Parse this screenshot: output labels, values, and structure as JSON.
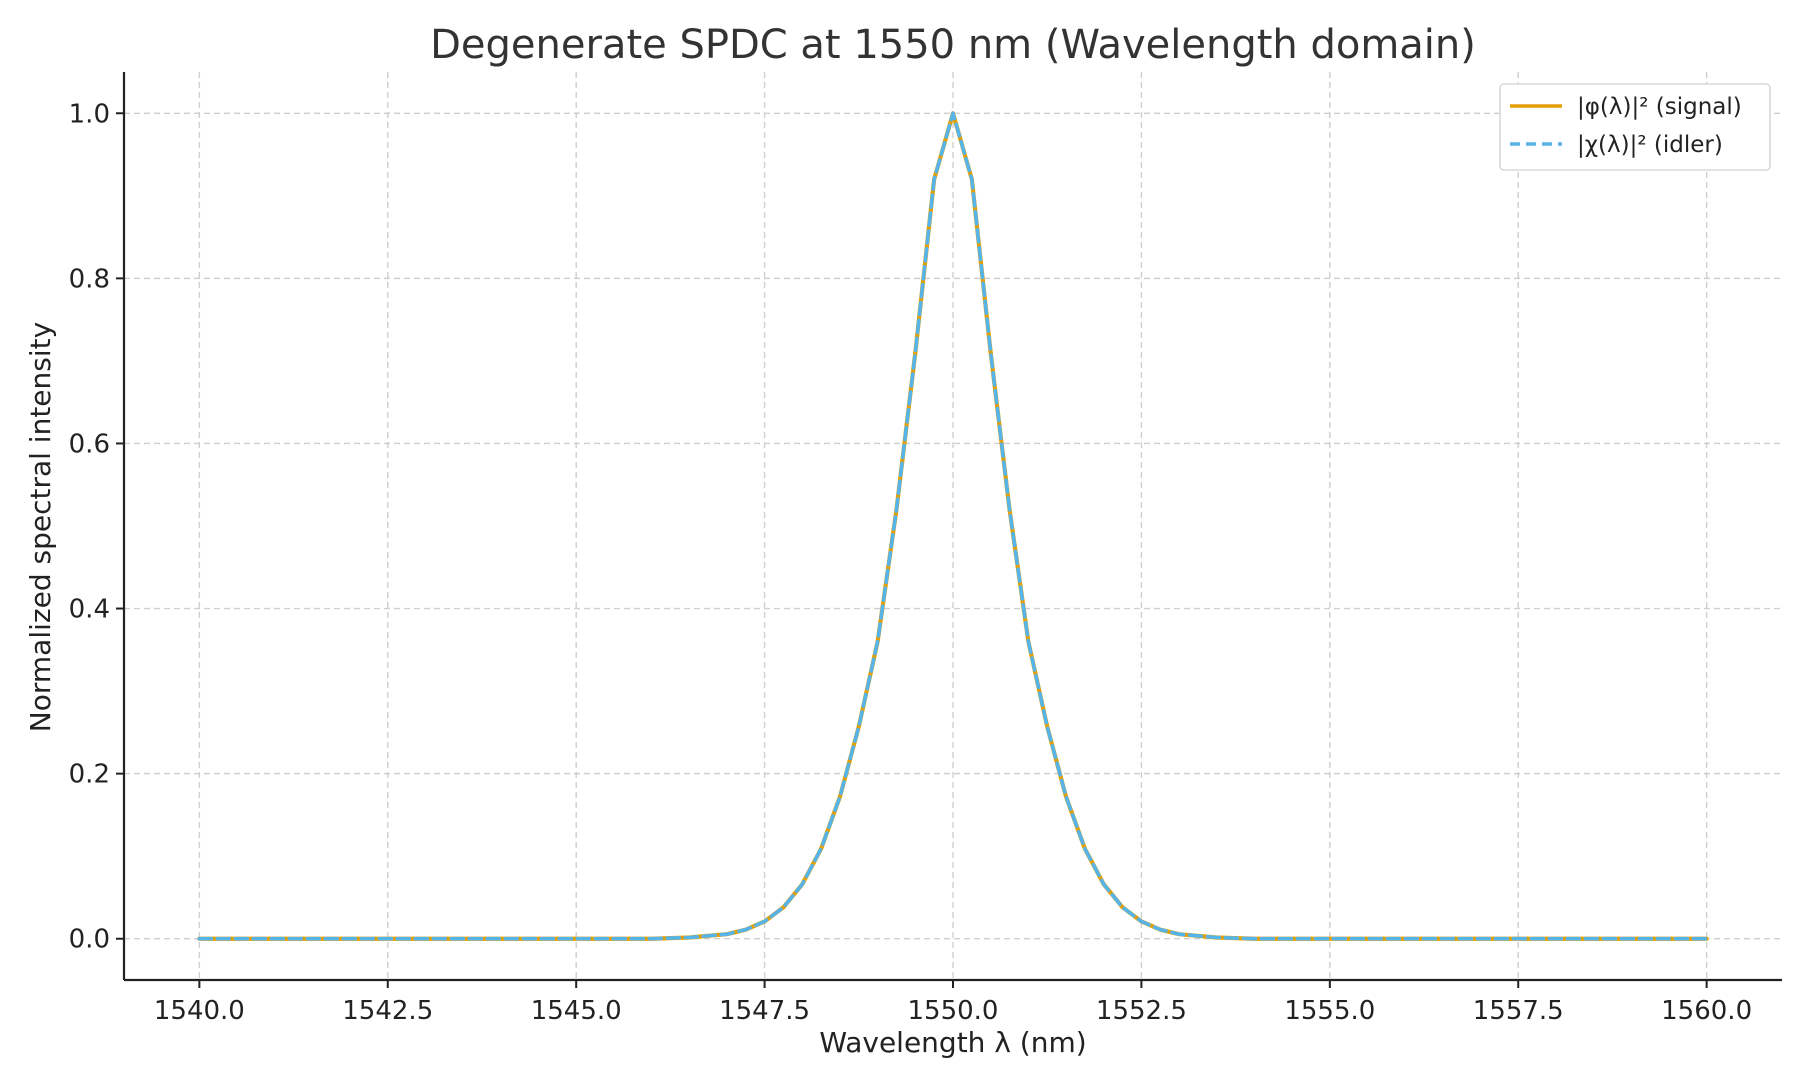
{
  "chart_data": {
    "type": "line",
    "title": "Degenerate SPDC at 1550 nm (Wavelength domain)",
    "xlabel": "Wavelength λ (nm)",
    "ylabel": "Normalized spectral intensity",
    "xlim": [
      1539,
      1561
    ],
    "ylim": [
      -0.05,
      1.05
    ],
    "xticks": [
      1540.0,
      1542.5,
      1545.0,
      1547.5,
      1550.0,
      1552.5,
      1555.0,
      1557.5,
      1560.0
    ],
    "xtick_labels": [
      "1540.0",
      "1542.5",
      "1545.0",
      "1547.5",
      "1550.0",
      "1552.5",
      "1555.0",
      "1557.5",
      "1560.0"
    ],
    "yticks": [
      0.0,
      0.2,
      0.4,
      0.6,
      0.8,
      1.0
    ],
    "ytick_labels": [
      "0.0",
      "0.2",
      "0.4",
      "0.6",
      "0.8",
      "1.0"
    ],
    "grid": true,
    "legend_position": "top-right",
    "series": [
      {
        "name": "|φ(λ)|² (signal)",
        "color": "#E69F00",
        "style": "solid",
        "x": [
          1540.0,
          1545.0,
          1546.0,
          1546.5,
          1547.0,
          1547.25,
          1547.5,
          1547.75,
          1548.0,
          1548.25,
          1548.5,
          1548.75,
          1549.0,
          1549.25,
          1549.5,
          1549.75,
          1550.0,
          1550.25,
          1550.5,
          1550.75,
          1551.0,
          1551.25,
          1551.5,
          1551.75,
          1552.0,
          1552.25,
          1552.5,
          1552.75,
          1553.0,
          1553.5,
          1554.0,
          1555.0,
          1560.0
        ],
        "y": [
          0.0,
          0.0,
          0.0,
          0.0015,
          0.0055,
          0.011,
          0.021,
          0.038,
          0.066,
          0.109,
          0.172,
          0.257,
          0.36,
          0.52,
          0.71,
          0.92,
          1.0,
          0.92,
          0.71,
          0.52,
          0.36,
          0.257,
          0.172,
          0.109,
          0.066,
          0.038,
          0.021,
          0.011,
          0.0055,
          0.0015,
          0.0,
          0.0,
          0.0
        ]
      },
      {
        "name": "|χ(λ)|² (idler)",
        "color": "#56B4E9",
        "style": "dashed",
        "x": [
          1540.0,
          1545.0,
          1546.0,
          1546.5,
          1547.0,
          1547.25,
          1547.5,
          1547.75,
          1548.0,
          1548.25,
          1548.5,
          1548.75,
          1549.0,
          1549.25,
          1549.5,
          1549.75,
          1550.0,
          1550.25,
          1550.5,
          1550.75,
          1551.0,
          1551.25,
          1551.5,
          1551.75,
          1552.0,
          1552.25,
          1552.5,
          1552.75,
          1553.0,
          1553.5,
          1554.0,
          1555.0,
          1560.0
        ],
        "y": [
          0.0,
          0.0,
          0.0,
          0.0015,
          0.0055,
          0.011,
          0.021,
          0.038,
          0.066,
          0.109,
          0.172,
          0.257,
          0.36,
          0.52,
          0.71,
          0.92,
          1.0,
          0.92,
          0.71,
          0.52,
          0.36,
          0.257,
          0.172,
          0.109,
          0.066,
          0.038,
          0.021,
          0.011,
          0.0055,
          0.0015,
          0.0,
          0.0,
          0.0
        ]
      }
    ]
  }
}
